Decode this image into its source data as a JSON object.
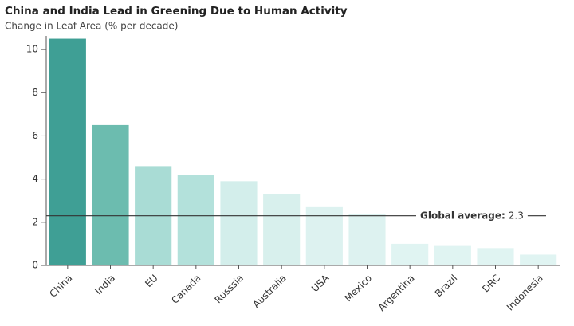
{
  "chart_data": {
    "type": "bar",
    "title": "China and India Lead in Greening Due to Human Activity",
    "subtitle": "Change in Leaf Area (% per decade)",
    "categories": [
      "China",
      "India",
      "EU",
      "Canada",
      "Russsia",
      "Australia",
      "USA",
      "Mexico",
      "Argentina",
      "Brazil",
      "DRC",
      "Indonesia"
    ],
    "values": [
      10.5,
      6.5,
      4.6,
      4.2,
      3.9,
      3.3,
      2.7,
      2.4,
      1.0,
      0.9,
      0.8,
      0.5
    ],
    "colors": [
      "#3f9f95",
      "#6cbcaf",
      "#a9dcd5",
      "#b3e1db",
      "#d3eeeb",
      "#d8f0ed",
      "#ddf2f0",
      "#ddf2f0",
      "#e0f4f2",
      "#e0f4f2",
      "#e0f4f2",
      "#e0f4f2"
    ],
    "ylim": [
      0,
      11
    ],
    "yticks": [
      0,
      2,
      4,
      6,
      8,
      10
    ],
    "reference_line": {
      "label": "Global average:",
      "value": 2.3,
      "color": "#333333"
    }
  }
}
